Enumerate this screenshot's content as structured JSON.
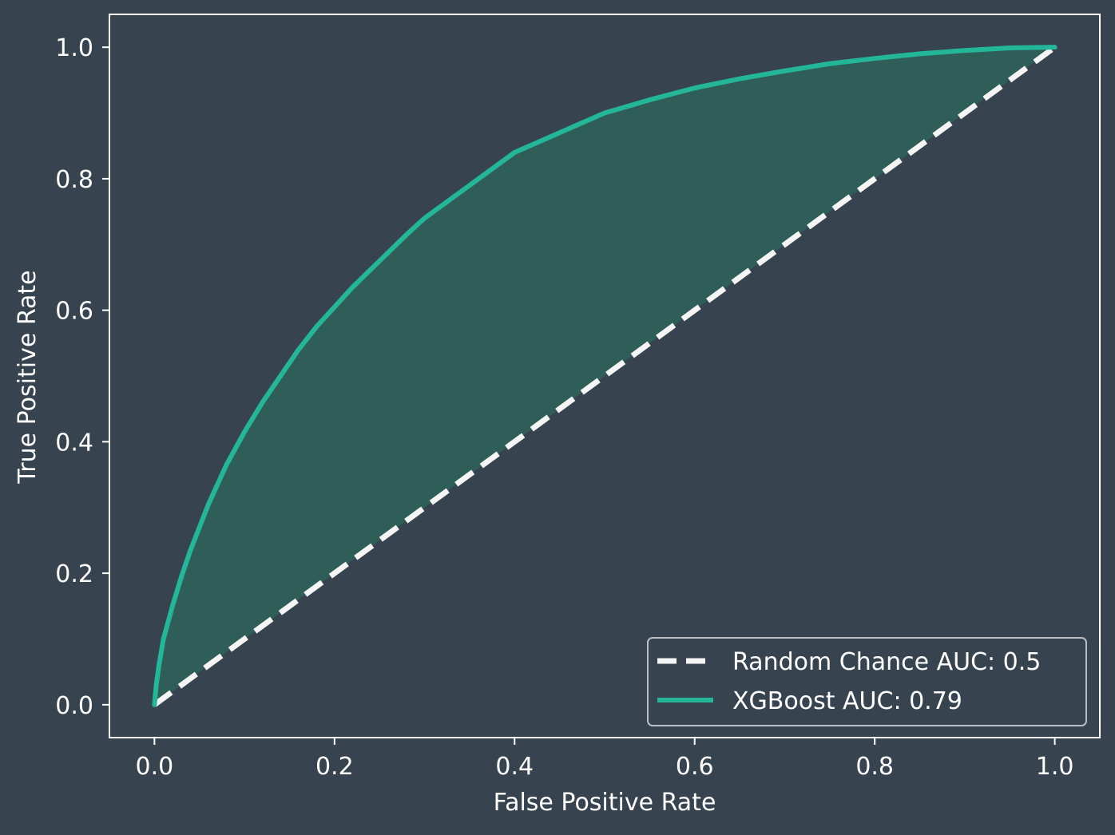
{
  "chart_data": {
    "type": "line",
    "title": "",
    "xlabel": "False Positive Rate",
    "ylabel": "True Positive Rate",
    "xlim": [
      -0.05,
      1.05
    ],
    "ylim": [
      -0.05,
      1.05
    ],
    "grid": false,
    "legend_position": "lower-right",
    "xticks": [
      {
        "value": 0.0,
        "label": "0.0"
      },
      {
        "value": 0.2,
        "label": "0.2"
      },
      {
        "value": 0.4,
        "label": "0.4"
      },
      {
        "value": 0.6,
        "label": "0.6"
      },
      {
        "value": 0.8,
        "label": "0.8"
      },
      {
        "value": 1.0,
        "label": "1.0"
      }
    ],
    "yticks": [
      {
        "value": 0.0,
        "label": "0.0"
      },
      {
        "value": 0.2,
        "label": "0.2"
      },
      {
        "value": 0.4,
        "label": "0.4"
      },
      {
        "value": 0.6,
        "label": "0.6"
      },
      {
        "value": 0.8,
        "label": "0.8"
      },
      {
        "value": 1.0,
        "label": "1.0"
      }
    ],
    "series": [
      {
        "name": "Random Chance AUC: 0.5",
        "style": "dashed",
        "color": "#f5f5f5",
        "x": [
          0.0,
          1.0
        ],
        "y": [
          0.0,
          1.0
        ]
      },
      {
        "name": "XGBoost AUC: 0.79",
        "style": "solid",
        "color": "#23b698",
        "fill_to_diagonal": true,
        "fill_color": "#2f5e58",
        "x": [
          0.0,
          0.002,
          0.005,
          0.01,
          0.015,
          0.02,
          0.03,
          0.04,
          0.05,
          0.06,
          0.07,
          0.08,
          0.09,
          0.1,
          0.12,
          0.14,
          0.16,
          0.18,
          0.2,
          0.22,
          0.25,
          0.28,
          0.3,
          0.33,
          0.36,
          0.4,
          0.45,
          0.5,
          0.55,
          0.6,
          0.65,
          0.7,
          0.75,
          0.8,
          0.85,
          0.9,
          0.95,
          1.0
        ],
        "y": [
          0.0,
          0.03,
          0.06,
          0.1,
          0.125,
          0.15,
          0.195,
          0.235,
          0.27,
          0.305,
          0.335,
          0.365,
          0.39,
          0.415,
          0.46,
          0.5,
          0.54,
          0.575,
          0.605,
          0.635,
          0.675,
          0.715,
          0.74,
          0.77,
          0.8,
          0.84,
          0.87,
          0.9,
          0.92,
          0.938,
          0.952,
          0.964,
          0.975,
          0.983,
          0.99,
          0.995,
          0.999,
          1.0
        ]
      }
    ]
  },
  "colors": {
    "background": "#37444f",
    "axes_edge": "#ffffff",
    "text": "#ffffff",
    "legend_edge": "#b8bec4"
  }
}
